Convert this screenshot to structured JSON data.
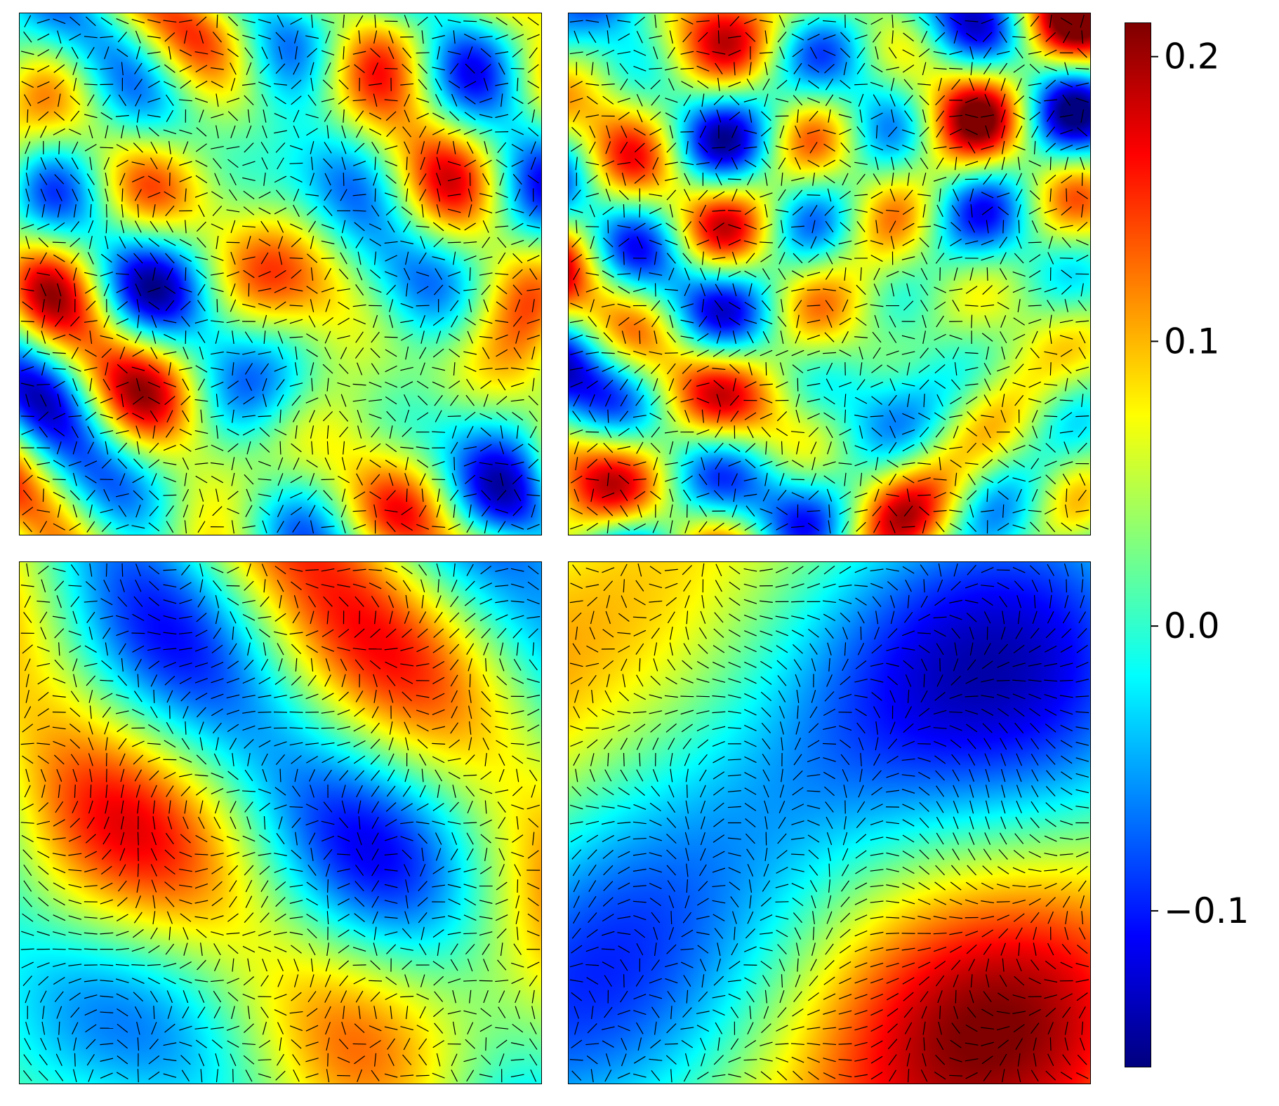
{
  "chart_data": {
    "type": "heatmap",
    "panels": [
      {
        "name": "top-left",
        "feature_scale": "fine"
      },
      {
        "name": "top-right",
        "feature_scale": "fine"
      },
      {
        "name": "bottom-left",
        "feature_scale": "medium"
      },
      {
        "name": "bottom-right",
        "feature_scale": "coarse"
      }
    ],
    "overlay": "director field line segments",
    "colormap": "jet",
    "colorbar": {
      "range": [
        -0.155,
        0.212
      ],
      "ticks": [
        {
          "value": 0.2,
          "label": "0.2"
        },
        {
          "value": 0.1,
          "label": "0.1"
        },
        {
          "value": 0.0,
          "label": "0.0"
        },
        {
          "value": -0.1,
          "label": "−0.1"
        }
      ]
    },
    "title": "",
    "xlabel": "",
    "ylabel": ""
  },
  "colors": {
    "segment": "#000000",
    "frame": "#000000"
  }
}
